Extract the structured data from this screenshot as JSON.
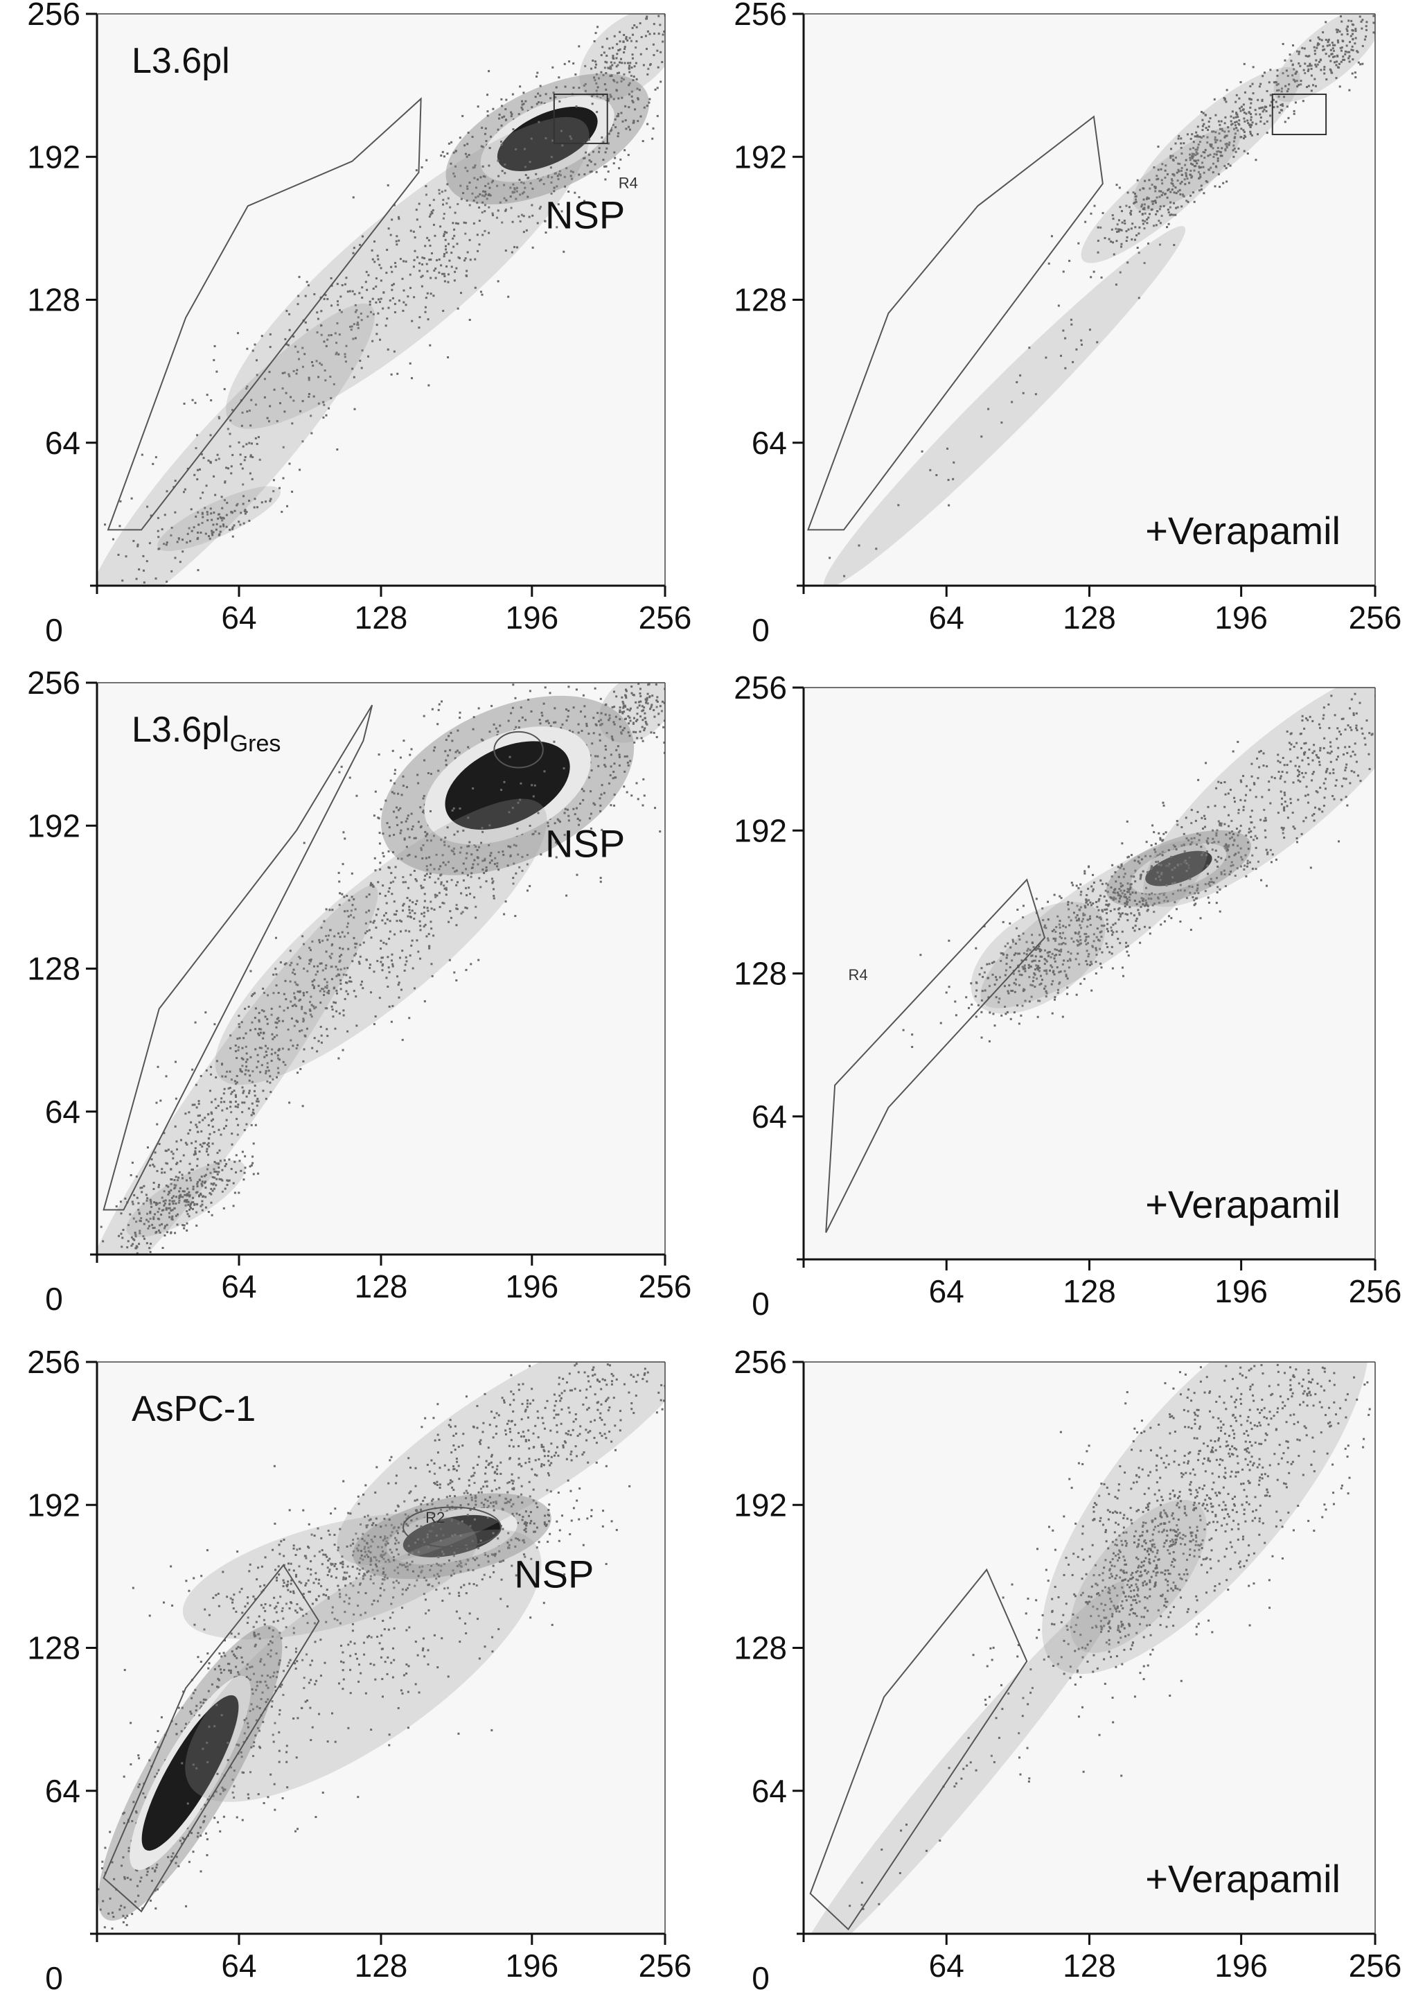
{
  "chart_data": [
    {
      "type": "scatter",
      "panel_label": "L3.6pl",
      "panel_label_main": "L3.6pl",
      "panel_label_sub": "",
      "annotation": "NSP",
      "gate_label": "R4",
      "xlim": [
        0,
        256
      ],
      "ylim": [
        0,
        256
      ],
      "x_ticks": [
        64,
        128,
        196,
        256
      ],
      "y_ticks": [
        64,
        128,
        192,
        256
      ],
      "x_tick_labels": [
        "64",
        "128",
        "196",
        "256"
      ],
      "y_tick_labels": [
        "64",
        "128",
        "192",
        "256"
      ],
      "origin_label": "0",
      "gate_polygon": [
        [
          5,
          25
        ],
        [
          20,
          25
        ],
        [
          145,
          185
        ],
        [
          146,
          218
        ],
        [
          115,
          190
        ],
        [
          68,
          170
        ],
        [
          40,
          120
        ]
      ],
      "rect_gate": [
        [
          206,
          198
        ],
        [
          230,
          220
        ]
      ],
      "clusters": [
        {
          "cx": 203,
          "cy": 200,
          "sx": 26,
          "sy": 12,
          "angle": 25,
          "n": 650,
          "core": 0.75
        },
        {
          "cx": 140,
          "cy": 140,
          "sx": 55,
          "sy": 14,
          "angle": 40,
          "n": 450
        },
        {
          "cx": 240,
          "cy": 238,
          "sx": 14,
          "sy": 8,
          "angle": 40,
          "n": 140
        },
        {
          "cx": 60,
          "cy": 55,
          "sx": 50,
          "sy": 10,
          "angle": 48,
          "n": 160
        },
        {
          "cx": 55,
          "cy": 30,
          "sx": 16,
          "sy": 4,
          "angle": 25,
          "n": 90
        }
      ]
    },
    {
      "type": "scatter",
      "panel_label": "",
      "annotation": "+Verapamil",
      "gate_label": "",
      "xlim": [
        0,
        256
      ],
      "ylim": [
        0,
        256
      ],
      "x_ticks": [
        64,
        128,
        196,
        256
      ],
      "y_ticks": [
        64,
        128,
        192,
        256
      ],
      "x_tick_labels": [
        "64",
        "128",
        "196",
        "256"
      ],
      "y_tick_labels": [
        "64",
        "128",
        "192",
        "256"
      ],
      "origin_label": "0",
      "gate_polygon": [
        [
          2,
          25
        ],
        [
          18,
          25
        ],
        [
          134,
          180
        ],
        [
          130,
          210
        ],
        [
          78,
          170
        ],
        [
          38,
          122
        ]
      ],
      "rect_gate": [
        [
          210,
          202
        ],
        [
          234,
          220
        ]
      ],
      "clusters": [
        {
          "cx": 185,
          "cy": 200,
          "sx": 25,
          "sy": 7,
          "angle": 40,
          "n": 350
        },
        {
          "cx": 160,
          "cy": 175,
          "sx": 24,
          "sy": 6,
          "angle": 40,
          "n": 200
        },
        {
          "cx": 235,
          "cy": 238,
          "sx": 16,
          "sy": 6,
          "angle": 40,
          "n": 200
        },
        {
          "cx": 90,
          "cy": 80,
          "sx": 60,
          "sy": 6,
          "angle": 45,
          "n": 40
        }
      ]
    },
    {
      "type": "scatter",
      "panel_label": "L3.6plGres",
      "panel_label_main": "L3.6pl",
      "panel_label_sub": "Gres",
      "annotation": "NSP",
      "gate_label": "",
      "xlim": [
        0,
        256
      ],
      "ylim": [
        0,
        256
      ],
      "x_ticks": [
        64,
        128,
        196,
        256
      ],
      "y_ticks": [
        64,
        128,
        192,
        256
      ],
      "x_tick_labels": [
        "64",
        "128",
        "196",
        "256"
      ],
      "y_tick_labels": [
        "64",
        "128",
        "192",
        "256"
      ],
      "origin_label": "0",
      "gate_polygon": [
        [
          3,
          20
        ],
        [
          12,
          20
        ],
        [
          120,
          230
        ],
        [
          124,
          246
        ],
        [
          90,
          190
        ],
        [
          28,
          110
        ]
      ],
      "ellipse_gate": {
        "cx": 190,
        "cy": 226,
        "rx": 11,
        "ry": 8
      },
      "clusters": [
        {
          "cx": 185,
          "cy": 210,
          "sx": 32,
          "sy": 18,
          "angle": 25,
          "n": 750,
          "core": 0.75
        },
        {
          "cx": 128,
          "cy": 140,
          "sx": 50,
          "sy": 14,
          "angle": 40,
          "n": 500
        },
        {
          "cx": 60,
          "cy": 72,
          "sx": 60,
          "sy": 8,
          "angle": 55,
          "n": 500
        },
        {
          "cx": 40,
          "cy": 25,
          "sx": 16,
          "sy": 5,
          "angle": 30,
          "n": 220
        },
        {
          "cx": 243,
          "cy": 245,
          "sx": 10,
          "sy": 7,
          "angle": 40,
          "n": 140
        }
      ]
    },
    {
      "type": "scatter",
      "panel_label": "",
      "annotation": "+Verapamil",
      "gate_label": "R4",
      "xlim": [
        0,
        256
      ],
      "ylim": [
        0,
        256
      ],
      "x_ticks": [
        64,
        128,
        196,
        256
      ],
      "y_ticks": [
        64,
        128,
        192,
        256
      ],
      "x_tick_labels": [
        "64",
        "128",
        "196",
        "256"
      ],
      "y_tick_labels": [
        "64",
        "128",
        "192",
        "256"
      ],
      "origin_label": "0",
      "gate_polygon": [
        [
          10,
          12
        ],
        [
          14,
          78
        ],
        [
          100,
          170
        ],
        [
          108,
          144
        ],
        [
          38,
          68
        ]
      ],
      "clusters": [
        {
          "cx": 168,
          "cy": 175,
          "sx": 18,
          "sy": 7,
          "angle": 20,
          "n": 380,
          "core": 0.7
        },
        {
          "cx": 130,
          "cy": 150,
          "sx": 32,
          "sy": 9,
          "angle": 35,
          "n": 400
        },
        {
          "cx": 215,
          "cy": 212,
          "sx": 42,
          "sy": 12,
          "angle": 40,
          "n": 400
        },
        {
          "cx": 105,
          "cy": 135,
          "sx": 18,
          "sy": 10,
          "angle": 35,
          "n": 180
        }
      ]
    },
    {
      "type": "scatter",
      "panel_label": "AsPC-1",
      "panel_label_main": "AsPC-1",
      "panel_label_sub": "",
      "annotation": "NSP",
      "gate_label": "R2",
      "xlim": [
        0,
        256
      ],
      "ylim": [
        0,
        256
      ],
      "x_ticks": [
        64,
        128,
        196,
        256
      ],
      "y_ticks": [
        64,
        128,
        192,
        256
      ],
      "x_tick_labels": [
        "64",
        "128",
        "196",
        "256"
      ],
      "y_tick_labels": [
        "64",
        "128",
        "192",
        "256"
      ],
      "origin_label": "0",
      "gate_polygon": [
        [
          3,
          25
        ],
        [
          20,
          10
        ],
        [
          100,
          140
        ],
        [
          84,
          165
        ],
        [
          40,
          110
        ]
      ],
      "ellipse_gate": {
        "cx": 160,
        "cy": 182,
        "rx": 22,
        "ry": 9
      },
      "clusters": [
        {
          "cx": 42,
          "cy": 72,
          "sx": 40,
          "sy": 10,
          "angle": 60,
          "n": 650,
          "core": 0.8
        },
        {
          "cx": 160,
          "cy": 178,
          "sx": 24,
          "sy": 9,
          "angle": 12,
          "n": 550,
          "core": 0.75
        },
        {
          "cx": 105,
          "cy": 160,
          "sx": 36,
          "sy": 12,
          "angle": 15,
          "n": 300
        },
        {
          "cx": 190,
          "cy": 220,
          "sx": 50,
          "sy": 14,
          "angle": 32,
          "n": 550
        },
        {
          "cx": 120,
          "cy": 120,
          "sx": 50,
          "sy": 18,
          "angle": 35,
          "n": 250
        }
      ]
    },
    {
      "type": "scatter",
      "panel_label": "",
      "annotation": "+Verapamil",
      "gate_label": "",
      "xlim": [
        0,
        256
      ],
      "ylim": [
        0,
        256
      ],
      "x_ticks": [
        64,
        128,
        196,
        256
      ],
      "y_ticks": [
        64,
        128,
        192,
        256
      ],
      "x_tick_labels": [
        "64",
        "128",
        "196",
        "256"
      ],
      "y_tick_labels": [
        "64",
        "128",
        "192",
        "256"
      ],
      "origin_label": "0",
      "gate_polygon": [
        [
          3,
          18
        ],
        [
          20,
          2
        ],
        [
          100,
          122
        ],
        [
          82,
          163
        ],
        [
          36,
          106
        ]
      ],
      "clusters": [
        {
          "cx": 180,
          "cy": 200,
          "sx": 55,
          "sy": 20,
          "angle": 50,
          "n": 1000
        },
        {
          "cx": 150,
          "cy": 160,
          "sx": 22,
          "sy": 10,
          "angle": 50,
          "n": 250
        },
        {
          "cx": 70,
          "cy": 70,
          "sx": 60,
          "sy": 6,
          "angle": 50,
          "n": 40
        }
      ]
    }
  ]
}
